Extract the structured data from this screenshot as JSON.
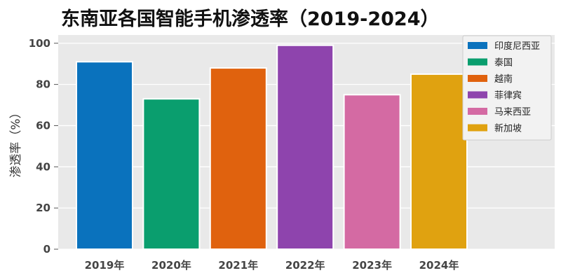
{
  "chart_data": {
    "type": "bar",
    "title": "东南亚各国智能手机渗透率（2019-2024）",
    "xlabel": "",
    "ylabel": "渗透率（%）",
    "categories": [
      "2019年",
      "2020年",
      "2021年",
      "2022年",
      "2023年",
      "2024年"
    ],
    "series": [
      {
        "name": "印度尼西亚",
        "values": [
          91,
          null,
          null,
          null,
          null,
          null
        ],
        "color": "#0a72bd"
      },
      {
        "name": "泰国",
        "values": [
          null,
          73,
          null,
          null,
          null,
          null
        ],
        "color": "#0a9e6e"
      },
      {
        "name": "越南",
        "values": [
          null,
          null,
          88,
          null,
          null,
          null
        ],
        "color": "#e0620e"
      },
      {
        "name": "菲律宾",
        "values": [
          null,
          null,
          null,
          99,
          null,
          null
        ],
        "color": "#8e44ad"
      },
      {
        "name": "马来西亚",
        "values": [
          null,
          null,
          null,
          null,
          75,
          null
        ],
        "color": "#d46aa3"
      },
      {
        "name": "新加坡",
        "values": [
          null,
          null,
          null,
          null,
          null,
          85
        ],
        "color": "#e0a210"
      }
    ],
    "ylim": [
      0,
      104
    ],
    "yticks": [
      0,
      20,
      40,
      60,
      80,
      100
    ],
    "grid": true,
    "legend": "top-right",
    "background": "#e9e9e9"
  }
}
